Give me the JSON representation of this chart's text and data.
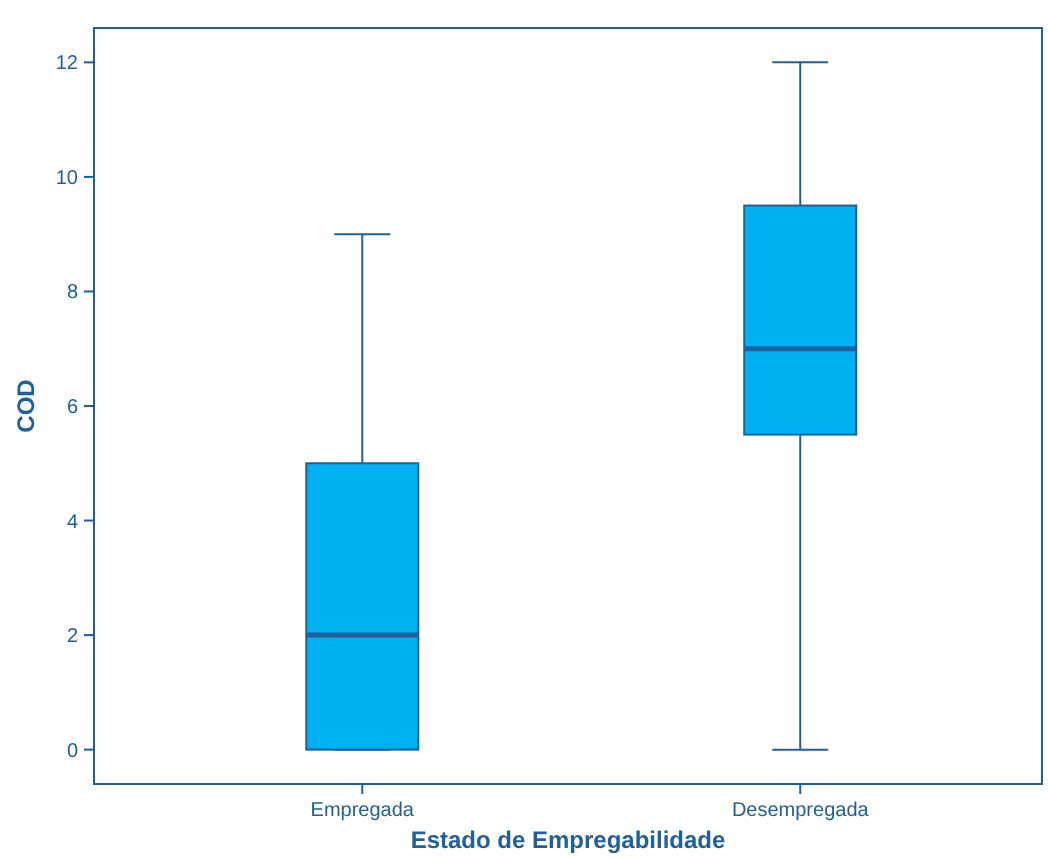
{
  "chart_data": {
    "type": "box",
    "xlabel": "Estado de Empregabilidade",
    "ylabel": "COD",
    "categories": [
      "Empregada",
      "Desempregada"
    ],
    "boxes": [
      {
        "low": 0,
        "q1": 0,
        "median": 2,
        "q3": 5,
        "high": 9
      },
      {
        "low": 0,
        "q1": 5.5,
        "median": 7,
        "q3": 9.5,
        "high": 12
      }
    ],
    "color": "#00b0f0",
    "ylim": [
      -0.6,
      12.6
    ],
    "yticks": [
      0,
      2,
      4,
      6,
      8,
      10,
      12
    ],
    "grid": false
  }
}
